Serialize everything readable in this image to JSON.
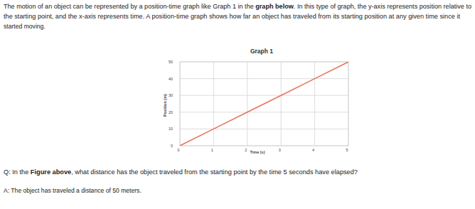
{
  "intro": [
    [
      {
        "text": "The motion of an object can be represented by a position-time graph like Graph 1 in the "
      },
      {
        "text": "graph below",
        "bold": true
      },
      {
        "text": ". In this type of graph, the y-axis represents position relative to"
      }
    ],
    [
      {
        "text": "the starting point, and the x-axis represents time. A position-time graph shows how far an object has traveled from its starting position at any given time since it"
      }
    ],
    [
      {
        "text": "started moving."
      }
    ]
  ],
  "chart_data": {
    "type": "line",
    "title": "Graph 1",
    "x_label": "Time (s)",
    "y_label": "Position (m)",
    "x": [
      0,
      1,
      2,
      3,
      4,
      5
    ],
    "series": [
      {
        "color": "#e8735a",
        "values": [
          0,
          10,
          20,
          30,
          40,
          50
        ]
      }
    ],
    "xlim": [
      0,
      5
    ],
    "ylim": [
      0,
      50
    ],
    "xticks": [
      0,
      1,
      2,
      3,
      4,
      5
    ],
    "yticks": [
      0,
      10,
      20,
      30,
      40,
      50
    ],
    "grid": true
  },
  "question": [
    {
      "text": "Q: In the "
    },
    {
      "text": "Figure above",
      "bold": true
    },
    {
      "text": ", what distance has the object traveled from the starting point by the time 5 seconds have elapsed?"
    }
  ],
  "answer": [
    {
      "text": "A: The object has traveled a distance of 50 meters."
    }
  ]
}
